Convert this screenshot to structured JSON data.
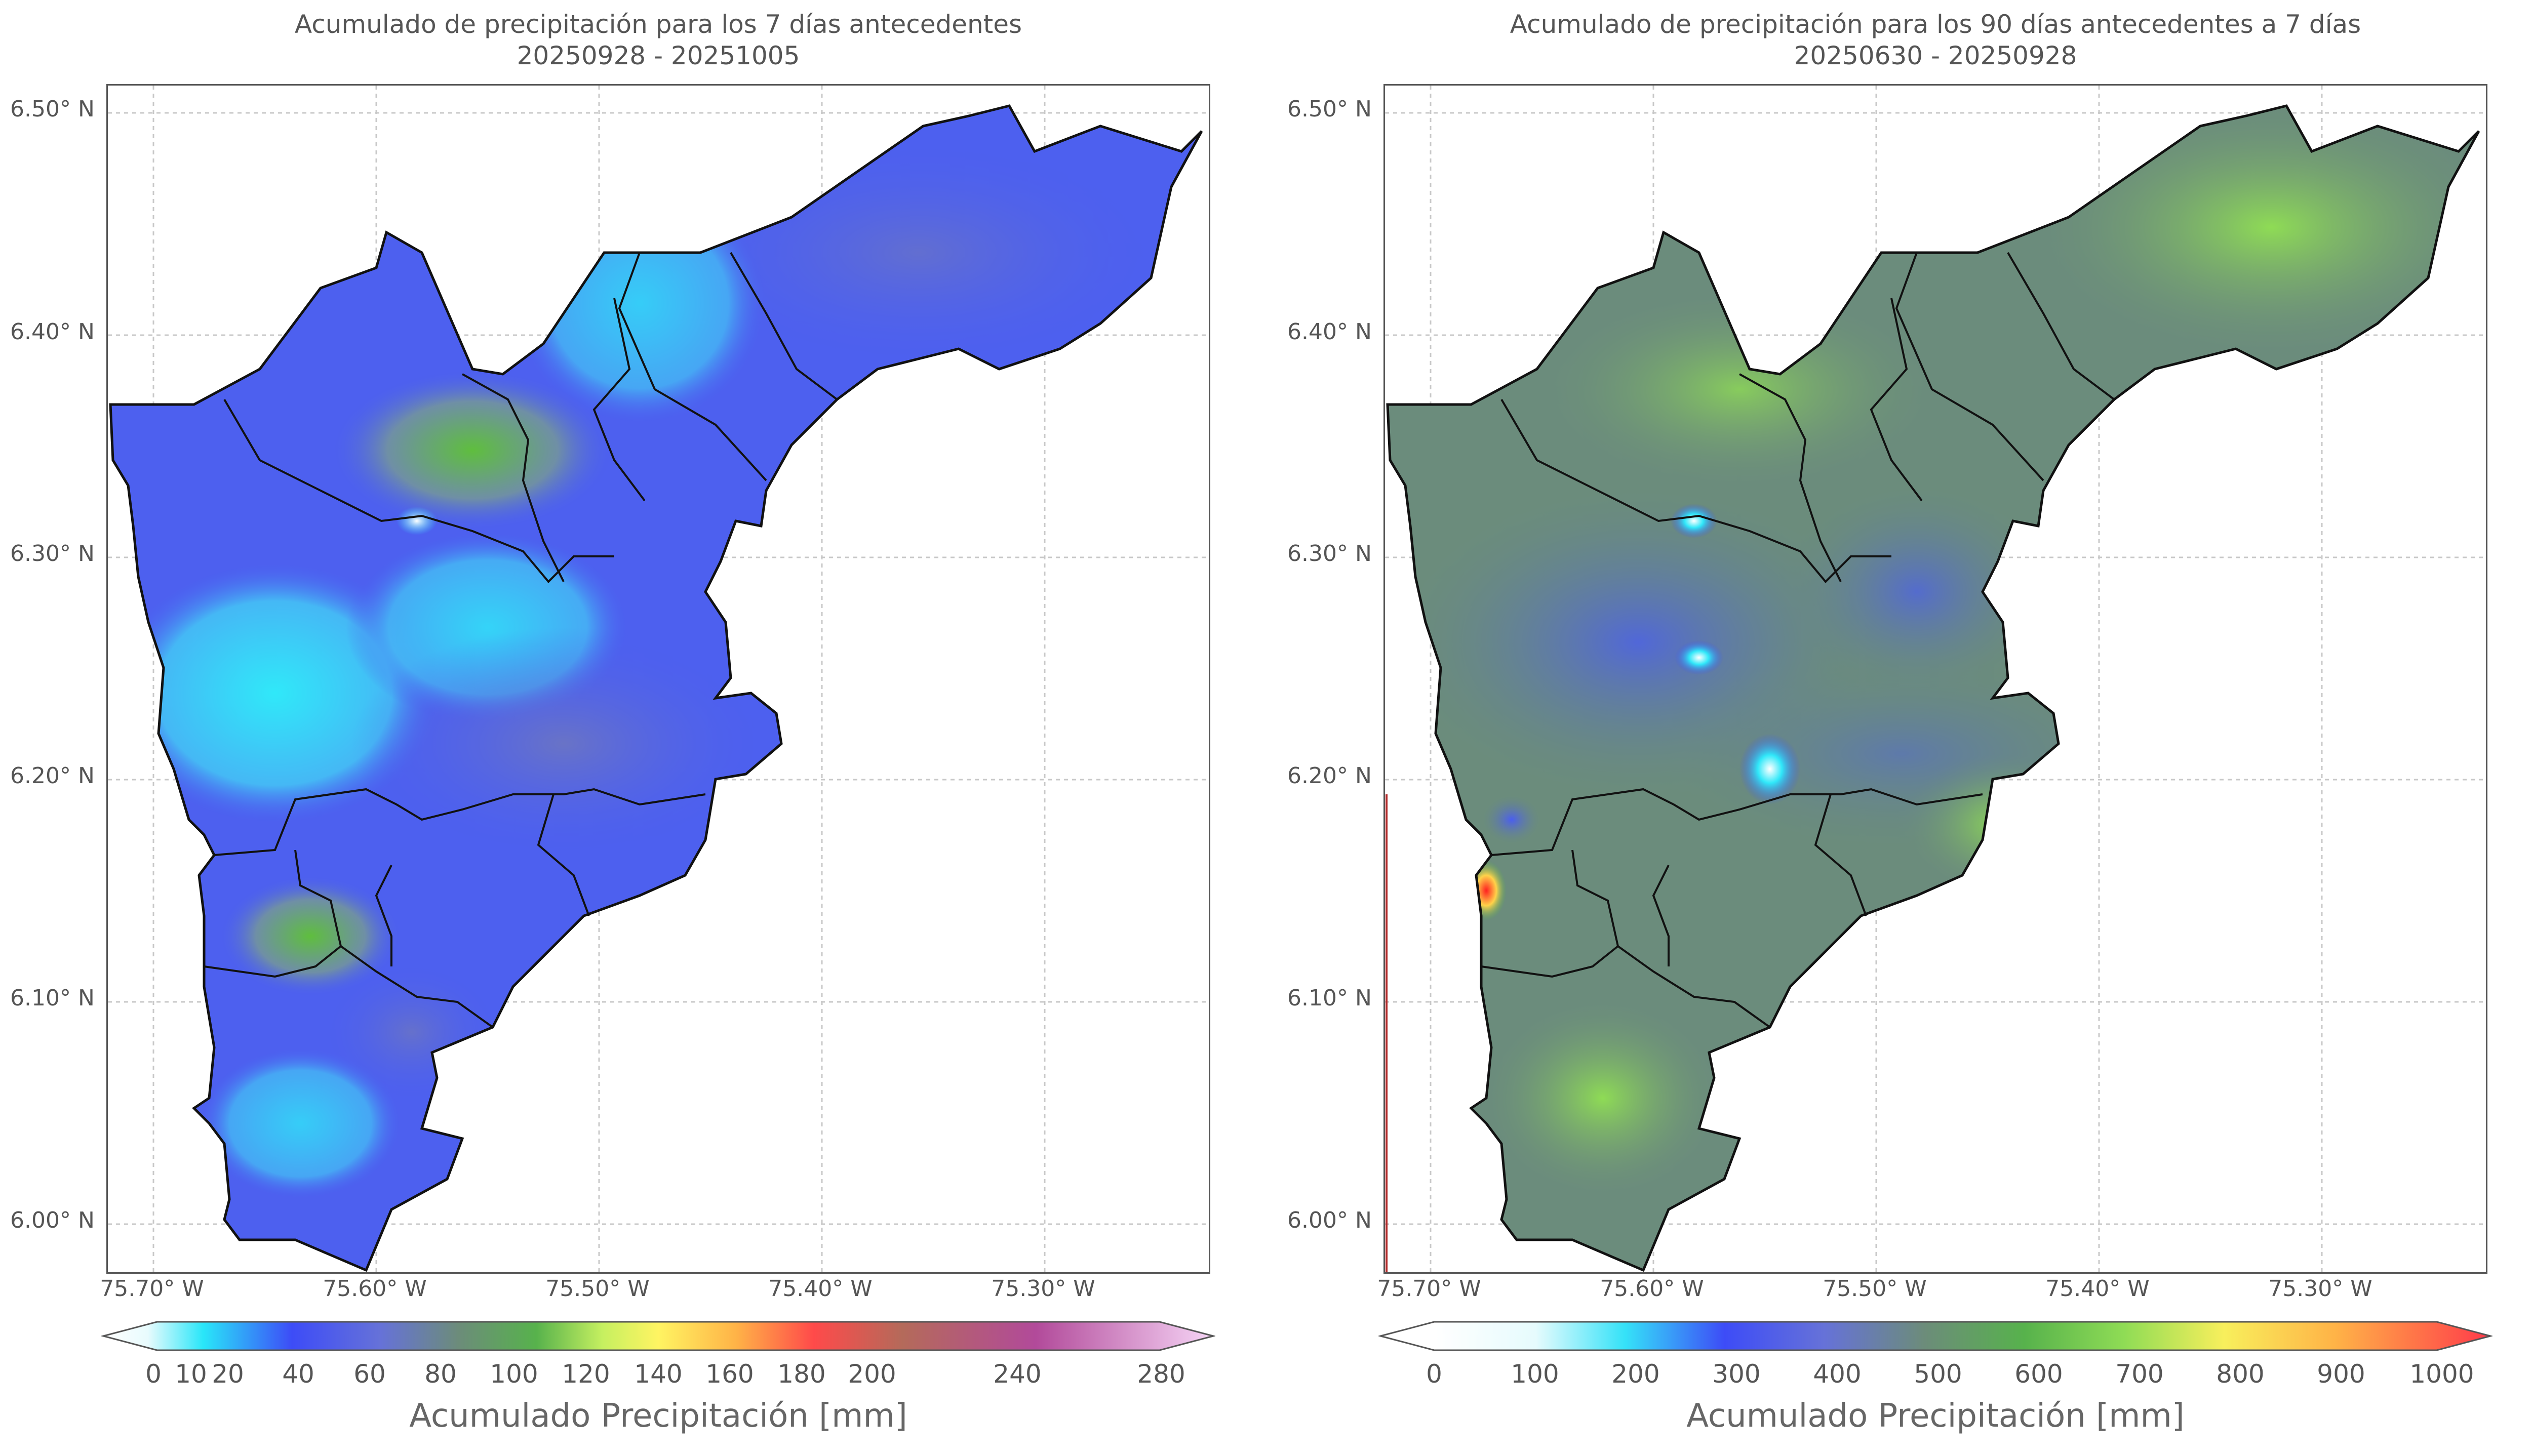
{
  "panels": [
    {
      "title_line1": "Acumulado de precipitación para los 7 días antecedentes",
      "title_line2": "20250928 - 20251005",
      "colorbar_label": "Acumulado Precipitación [mm]",
      "colorbar_ticks": [
        "0",
        "10",
        "20",
        "40",
        "60",
        "80",
        "100",
        "120",
        "140",
        "160",
        "180",
        "200",
        "240",
        "280"
      ],
      "colorbar_colors": [
        "#ffffff",
        "#e8fbfd",
        "#29e6f9",
        "#3d4cf7",
        "#5666e8",
        "#6a7cc2",
        "#57b24c",
        "#8fd85a",
        "#fff462",
        "#ffb347",
        "#ff6a4a",
        "#b46a5a",
        "#b24a9a",
        "#f6d5f6"
      ]
    },
    {
      "title_line1": "Acumulado de precipitación para los 90 días antecedentes a 7 días",
      "title_line2": "20250630 - 20250928",
      "colorbar_label": "Acumulado Precipitación [mm]",
      "colorbar_ticks": [
        "0",
        "100",
        "200",
        "300",
        "400",
        "500",
        "600",
        "700",
        "800",
        "900",
        "1000"
      ],
      "colorbar_colors": [
        "#ffffff",
        "#e6fbfd",
        "#35e2f8",
        "#3d4cf7",
        "#6672d8",
        "#6c8c7a",
        "#57b24c",
        "#8fdc55",
        "#f8ef5c",
        "#ffb347",
        "#ff4848"
      ]
    }
  ],
  "axes": {
    "lat_labels": [
      "6.50° N",
      "6.40° N",
      "6.30° N",
      "6.20° N",
      "6.10° N",
      "6.00° N"
    ],
    "lon_labels": [
      "75.70° W",
      "75.60° W",
      "75.50° W",
      "75.40° W",
      "75.30° W"
    ]
  }
}
